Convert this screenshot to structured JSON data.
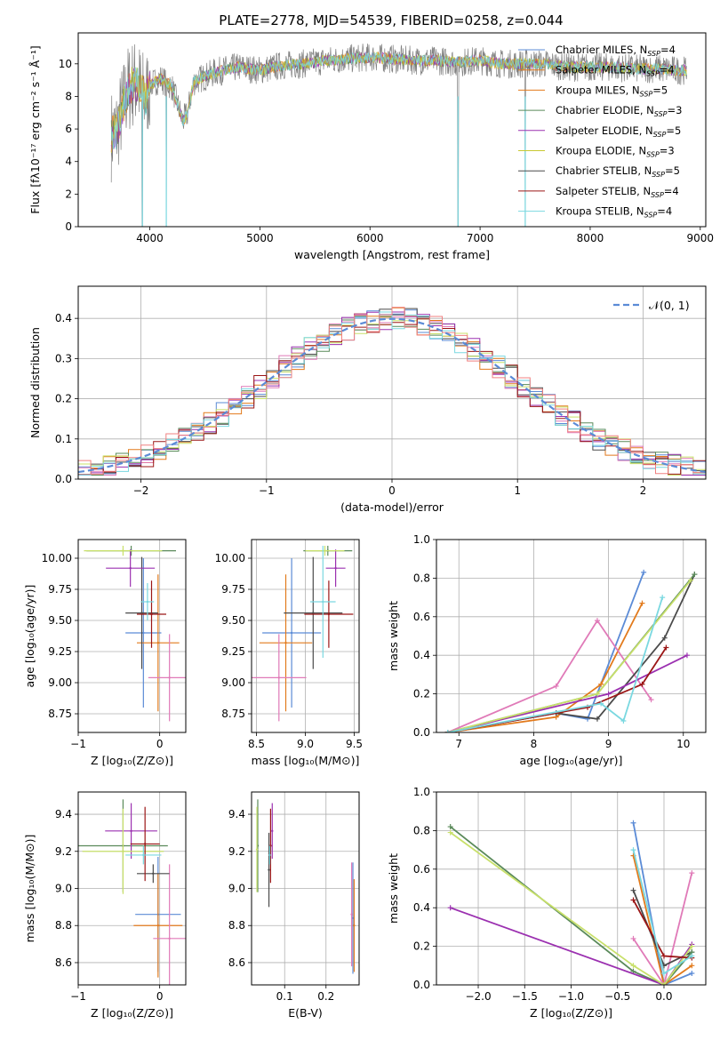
{
  "figure": {
    "title": "PLATE=2778, MJD=54539, FIBERID=0258, z=0.044"
  },
  "colors": [
    "#5b8bd6",
    "#e27a1c",
    "#e07ab8",
    "#4a4a4a",
    "#5a8a5a",
    "#9b30b0",
    "#c8e06a",
    "#9b1616",
    "#7ad8e0",
    "#c8c830"
  ],
  "chart_data": [
    {
      "id": "spectrum",
      "type": "line",
      "xlabel": "wavelength [Angstrom, rest frame]",
      "ylabel": "Flux [fλ10⁻¹⁷ erg cm⁻² s⁻¹ Å⁻¹]",
      "xlim": [
        3350,
        9050
      ],
      "ylim": [
        0,
        11.9
      ],
      "xticks": [
        4000,
        5000,
        6000,
        7000,
        8000,
        9000
      ],
      "yticks": [
        0,
        2,
        4,
        6,
        8,
        10
      ],
      "legend_position": "top-right",
      "legend": [
        {
          "main": "Chabrier MILES, N",
          "sub": "SSP",
          "tail": "=4",
          "color": "#5b8bd6"
        },
        {
          "main": "Salpeter MILES, N",
          "sub": "SSP",
          "tail": "=4",
          "color": "#e27a1c"
        },
        {
          "main": "Kroupa MILES, N",
          "sub": "SSP",
          "tail": "=5",
          "color": "#e27a1c"
        },
        {
          "main": "Chabrier ELODIE, N",
          "sub": "SSP",
          "tail": "=3",
          "color": "#5a8a5a"
        },
        {
          "main": "Salpeter ELODIE, N",
          "sub": "SSP",
          "tail": "=5",
          "color": "#9b30b0"
        },
        {
          "main": "Kroupa ELODIE, N",
          "sub": "SSP",
          "tail": "=3",
          "color": "#c8c830"
        },
        {
          "main": "Chabrier STELIB, N",
          "sub": "SSP",
          "tail": "=5",
          "color": "#4a4a4a"
        },
        {
          "main": "Salpeter STELIB, N",
          "sub": "SSP",
          "tail": "=4",
          "color": "#9b1616"
        },
        {
          "main": "Kroupa STELIB, N",
          "sub": "SSP",
          "tail": "=4",
          "color": "#7ad8e0"
        }
      ],
      "shape_points": [
        [
          3650,
          5.6
        ],
        [
          3700,
          5.9
        ],
        [
          3750,
          7.2
        ],
        [
          3800,
          8.4
        ],
        [
          3850,
          8.8
        ],
        [
          3900,
          8.6
        ],
        [
          3960,
          7.9
        ],
        [
          4000,
          8.7
        ],
        [
          4100,
          9.1
        ],
        [
          4200,
          8.6
        ],
        [
          4300,
          6.5
        ],
        [
          4340,
          6.9
        ],
        [
          4400,
          8.9
        ],
        [
          4600,
          9.5
        ],
        [
          4800,
          9.8
        ],
        [
          4900,
          9.7
        ],
        [
          5000,
          9.6
        ],
        [
          5200,
          9.9
        ],
        [
          5400,
          10.0
        ],
        [
          5600,
          10.2
        ],
        [
          5800,
          10.3
        ],
        [
          6000,
          10.4
        ],
        [
          6200,
          10.3
        ],
        [
          6400,
          10.2
        ],
        [
          6600,
          10.2
        ],
        [
          6800,
          10.1
        ],
        [
          7000,
          10.2
        ],
        [
          7200,
          10.0
        ],
        [
          7400,
          10.0
        ],
        [
          7600,
          10.0
        ],
        [
          7800,
          9.8
        ],
        [
          8000,
          9.8
        ],
        [
          8200,
          9.8
        ],
        [
          8400,
          9.7
        ],
        [
          8600,
          9.7
        ],
        [
          8800,
          9.6
        ]
      ],
      "dips": [
        [
          3933,
          0.0
        ],
        [
          4150,
          0.0
        ],
        [
          6800,
          0.0
        ],
        [
          7410,
          0.0
        ]
      ]
    },
    {
      "id": "residual-histogram",
      "type": "bar",
      "xlabel": "(data-model)/error",
      "ylabel": "Normed distribution",
      "xlim": [
        -2.5,
        2.5
      ],
      "ylim": [
        0,
        0.48
      ],
      "xticks": [
        -2,
        -1,
        0,
        1,
        2
      ],
      "xticklabels": [
        "−2",
        "−1",
        "0",
        "1",
        "2"
      ],
      "yticks": [
        0.0,
        0.1,
        0.2,
        0.3,
        0.4
      ],
      "bin_edges_from": -2.5,
      "bin_width": 0.1,
      "legend": [
        {
          "label": "𝒩(0, 1)",
          "color": "#5b8bd6",
          "style": "dashed"
        }
      ],
      "legend_position": "top-right"
    },
    {
      "id": "age-vs-metallicity",
      "type": "scatter",
      "xlabel": "Z [log₁₀(Z/Z⊙)]",
      "ylabel": "age  [log₁₀(age/yr)]",
      "xlim": [
        -1.0,
        0.32
      ],
      "ylim": [
        8.6,
        10.15
      ],
      "xticks": [
        -1,
        0
      ],
      "xticklabels": [
        "−1",
        "0"
      ],
      "yticks": [
        8.75,
        9.0,
        9.25,
        9.5,
        9.75,
        10.0
      ],
      "yticklabels": [
        "8.75",
        "9.00",
        "9.25",
        "9.50",
        "9.75",
        "10.00"
      ],
      "points": [
        {
          "x": -0.2,
          "y": 9.4,
          "xerr": 0.22,
          "yerr": 0.6,
          "color": "#5b8bd6"
        },
        {
          "x": -0.02,
          "y": 9.32,
          "xerr": 0.26,
          "yerr": 0.55,
          "color": "#e27a1c"
        },
        {
          "x": 0.12,
          "y": 9.04,
          "xerr": 0.26,
          "yerr": 0.35,
          "color": "#e07ab8"
        },
        {
          "x": -0.22,
          "y": 9.56,
          "xerr": 0.2,
          "yerr": 0.45,
          "color": "#4a4a4a"
        },
        {
          "x": -0.35,
          "y": 10.06,
          "xerr": 0.55,
          "yerr": 0.04,
          "color": "#5a8a5a"
        },
        {
          "x": -0.36,
          "y": 9.92,
          "xerr": 0.3,
          "yerr": 0.15,
          "color": "#9b30b0"
        },
        {
          "x": -0.45,
          "y": 10.06,
          "xerr": 0.48,
          "yerr": 0.04,
          "color": "#c8e06a"
        },
        {
          "x": -0.1,
          "y": 9.55,
          "xerr": 0.18,
          "yerr": 0.27,
          "color": "#9b1616"
        },
        {
          "x": -0.15,
          "y": 9.65,
          "xerr": 0.08,
          "yerr": 0.15,
          "color": "#7ad8e0"
        }
      ]
    },
    {
      "id": "age-vs-mass",
      "type": "scatter",
      "xlabel": "mass [log₁₀(M/M⊙)]",
      "ylabel": "",
      "xlim": [
        8.45,
        9.55
      ],
      "ylim": [
        8.6,
        10.15
      ],
      "xticks": [
        8.5,
        9.0,
        9.5
      ],
      "xticklabels": [
        "8.5",
        "9.0",
        "9.5"
      ],
      "yticks": [
        8.75,
        9.0,
        9.25,
        9.5,
        9.75,
        10.0
      ],
      "yticklabels": [
        "8.75",
        "9.00",
        "9.25",
        "9.50",
        "9.75",
        "10.00"
      ],
      "points": [
        {
          "x": 8.86,
          "y": 9.4,
          "xerr": 0.3,
          "yerr": 0.6,
          "color": "#5b8bd6"
        },
        {
          "x": 8.8,
          "y": 9.32,
          "xerr": 0.27,
          "yerr": 0.55,
          "color": "#e27a1c"
        },
        {
          "x": 8.73,
          "y": 9.04,
          "xerr": 0.28,
          "yerr": 0.35,
          "color": "#e07ab8"
        },
        {
          "x": 9.08,
          "y": 9.56,
          "xerr": 0.3,
          "yerr": 0.45,
          "color": "#4a4a4a"
        },
        {
          "x": 9.23,
          "y": 10.06,
          "xerr": 0.25,
          "yerr": 0.04,
          "color": "#5a8a5a"
        },
        {
          "x": 9.31,
          "y": 9.92,
          "xerr": 0.1,
          "yerr": 0.15,
          "color": "#9b30b0"
        },
        {
          "x": 9.2,
          "y": 10.06,
          "xerr": 0.2,
          "yerr": 0.04,
          "color": "#c8e06a"
        },
        {
          "x": 9.24,
          "y": 9.55,
          "xerr": 0.25,
          "yerr": 0.27,
          "color": "#9b1616"
        },
        {
          "x": 9.18,
          "y": 9.65,
          "xerr": 0.13,
          "yerr": 0.45,
          "color": "#7ad8e0"
        }
      ]
    },
    {
      "id": "weight-vs-age",
      "type": "line",
      "xlabel": "age  [log₁₀(age/yr)]",
      "ylabel": "mass weight",
      "xlim": [
        6.7,
        10.3
      ],
      "ylim": [
        0,
        1.0
      ],
      "xticks": [
        7,
        8,
        9,
        10
      ],
      "xticklabels": [
        "7",
        "8",
        "9",
        "10"
      ],
      "yticks": [
        0.0,
        0.2,
        0.4,
        0.6,
        0.8,
        1.0
      ],
      "yticklabels": [
        "0.0",
        "0.2",
        "0.4",
        "0.6",
        "0.8",
        "1.0"
      ],
      "series": [
        {
          "color": "#5b8bd6",
          "x": [
            6.85,
            8.3,
            8.72,
            9.47
          ],
          "y": [
            0.0,
            0.1,
            0.07,
            0.83
          ]
        },
        {
          "color": "#e27a1c",
          "x": [
            6.85,
            8.3,
            8.9,
            9.45
          ],
          "y": [
            0.0,
            0.08,
            0.25,
            0.67
          ]
        },
        {
          "color": "#e07ab8",
          "x": [
            6.85,
            8.3,
            8.85,
            9.57
          ],
          "y": [
            0.0,
            0.24,
            0.58,
            0.17
          ]
        },
        {
          "color": "#4a4a4a",
          "x": [
            6.85,
            8.3,
            8.85,
            9.75,
            10.15
          ],
          "y": [
            0.0,
            0.1,
            0.07,
            0.49,
            0.82
          ]
        },
        {
          "color": "#5a8a5a",
          "x": [
            6.85,
            8.85,
            10.15
          ],
          "y": [
            0.0,
            0.2,
            0.82
          ]
        },
        {
          "color": "#9b30b0",
          "x": [
            6.85,
            9.0,
            10.05
          ],
          "y": [
            0.0,
            0.2,
            0.4
          ]
        },
        {
          "color": "#c8e06a",
          "x": [
            6.85,
            8.85,
            10.1
          ],
          "y": [
            0.0,
            0.2,
            0.79
          ]
        },
        {
          "color": "#9b1616",
          "x": [
            6.85,
            8.72,
            9.45,
            9.77
          ],
          "y": [
            0.0,
            0.13,
            0.25,
            0.44
          ]
        },
        {
          "color": "#7ad8e0",
          "x": [
            6.85,
            8.9,
            9.2,
            9.72
          ],
          "y": [
            0.0,
            0.15,
            0.06,
            0.7
          ]
        }
      ]
    },
    {
      "id": "mass-vs-metallicity",
      "type": "scatter",
      "xlabel": "Z [log₁₀(Z/Z⊙)]",
      "ylabel": "mass [log₁₀(M/M⊙)]",
      "xlim": [
        -1.0,
        0.32
      ],
      "ylim": [
        8.48,
        9.52
      ],
      "xticks": [
        -1,
        0
      ],
      "xticklabels": [
        "−1",
        "0"
      ],
      "yticks": [
        8.6,
        8.8,
        9.0,
        9.2,
        9.4
      ],
      "yticklabels": [
        "8.6",
        "8.8",
        "9.0",
        "9.2",
        "9.4"
      ],
      "points": [
        {
          "x": -0.02,
          "y": 8.86,
          "xerr": 0.28,
          "yerr": 0.31,
          "color": "#5b8bd6"
        },
        {
          "x": -0.02,
          "y": 8.8,
          "xerr": 0.3,
          "yerr": 0.28,
          "color": "#e27a1c"
        },
        {
          "x": 0.12,
          "y": 8.73,
          "xerr": 0.2,
          "yerr": 0.4,
          "color": "#e07ab8"
        },
        {
          "x": -0.08,
          "y": 9.08,
          "xerr": 0.2,
          "yerr": 0.05,
          "color": "#4a4a4a"
        },
        {
          "x": -0.45,
          "y": 9.23,
          "xerr": 0.55,
          "yerr": 0.25,
          "color": "#5a8a5a"
        },
        {
          "x": -0.35,
          "y": 9.31,
          "xerr": 0.32,
          "yerr": 0.15,
          "color": "#9b30b0"
        },
        {
          "x": -0.45,
          "y": 9.2,
          "xerr": 0.5,
          "yerr": 0.23,
          "color": "#c8e06a"
        },
        {
          "x": -0.18,
          "y": 9.24,
          "xerr": 0.18,
          "yerr": 0.2,
          "color": "#9b1616"
        },
        {
          "x": -0.2,
          "y": 9.18,
          "xerr": 0.22,
          "yerr": 0.05,
          "color": "#7ad8e0"
        }
      ]
    },
    {
      "id": "mass-vs-extinction",
      "type": "scatter",
      "xlabel": "E(B-V)",
      "ylabel": "",
      "xlim": [
        0.02,
        0.28
      ],
      "ylim": [
        8.48,
        9.52
      ],
      "xticks": [
        0.1,
        0.2
      ],
      "xticklabels": [
        "0.1",
        "0.2"
      ],
      "yticks": [
        8.6,
        8.8,
        9.0,
        9.2,
        9.4
      ],
      "yticklabels": [
        "8.6",
        "8.8",
        "9.0",
        "9.2",
        "9.4"
      ],
      "points": [
        {
          "x": 0.265,
          "y": 8.84,
          "xerr": 0.0,
          "yerr": 0.3,
          "color": "#5b8bd6"
        },
        {
          "x": 0.268,
          "y": 8.8,
          "xerr": 0.0,
          "yerr": 0.25,
          "color": "#e27a1c"
        },
        {
          "x": 0.262,
          "y": 8.86,
          "xerr": 0.0,
          "yerr": 0.28,
          "color": "#e07ab8"
        },
        {
          "x": 0.062,
          "y": 9.1,
          "xerr": 0.0,
          "yerr": 0.2,
          "color": "#4a4a4a"
        },
        {
          "x": 0.035,
          "y": 9.23,
          "xerr": 0.0,
          "yerr": 0.25,
          "color": "#5a8a5a"
        },
        {
          "x": 0.07,
          "y": 9.31,
          "xerr": 0.0,
          "yerr": 0.15,
          "color": "#9b30b0"
        },
        {
          "x": 0.033,
          "y": 9.21,
          "xerr": 0.0,
          "yerr": 0.23,
          "color": "#c8e06a"
        },
        {
          "x": 0.066,
          "y": 9.23,
          "xerr": 0.0,
          "yerr": 0.2,
          "color": "#9b1616"
        },
        {
          "x": 0.064,
          "y": 9.18,
          "xerr": 0.0,
          "yerr": 0.05,
          "color": "#7ad8e0"
        }
      ]
    },
    {
      "id": "weight-vs-metallicity",
      "type": "line",
      "xlabel": "Z [log₁₀(Z/Z⊙)]",
      "ylabel": "mass weight",
      "xlim": [
        -2.45,
        0.45
      ],
      "ylim": [
        0,
        1.0
      ],
      "xticks": [
        -2.0,
        -1.5,
        -1.0,
        -0.5,
        0.0
      ],
      "xticklabels": [
        "−2.0",
        "−1.5",
        "−1.0",
        "−0.5",
        "0.0"
      ],
      "yticks": [
        0.0,
        0.2,
        0.4,
        0.6,
        0.8,
        1.0
      ],
      "yticklabels": [
        "0.0",
        "0.2",
        "0.4",
        "0.6",
        "0.8",
        "1.0"
      ],
      "series": [
        {
          "color": "#5b8bd6",
          "x": [
            -0.33,
            0.0,
            0.3
          ],
          "y": [
            0.84,
            0.0,
            0.06
          ]
        },
        {
          "color": "#e27a1c",
          "x": [
            -0.33,
            0.0,
            0.3
          ],
          "y": [
            0.67,
            0.0,
            0.1
          ]
        },
        {
          "color": "#e07ab8",
          "x": [
            -0.33,
            0.0,
            0.3
          ],
          "y": [
            0.24,
            0.0,
            0.58
          ]
        },
        {
          "color": "#4a4a4a",
          "x": [
            -0.33,
            0.0,
            0.3
          ],
          "y": [
            0.49,
            0.1,
            0.17
          ]
        },
        {
          "color": "#5a8a5a",
          "x": [
            -2.3,
            -0.33,
            0.0,
            0.3
          ],
          "y": [
            0.82,
            0.07,
            0.0,
            0.17
          ]
        },
        {
          "color": "#9b30b0",
          "x": [
            -2.3,
            0.0,
            0.3
          ],
          "y": [
            0.4,
            0.0,
            0.21
          ]
        },
        {
          "color": "#c8e06a",
          "x": [
            -2.3,
            -0.33,
            0.0,
            0.3
          ],
          "y": [
            0.79,
            0.1,
            0.0,
            0.2
          ]
        },
        {
          "color": "#9b1616",
          "x": [
            -0.33,
            0.0,
            0.3
          ],
          "y": [
            0.44,
            0.15,
            0.14
          ]
        },
        {
          "color": "#7ad8e0",
          "x": [
            -0.33,
            0.0,
            0.3
          ],
          "y": [
            0.7,
            0.06,
            0.15
          ]
        }
      ]
    }
  ]
}
